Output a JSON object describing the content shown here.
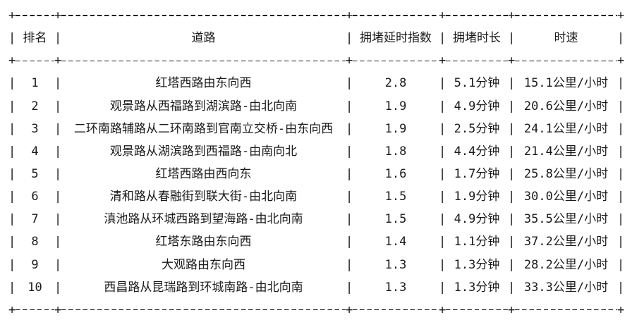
{
  "chart_data": {
    "type": "table",
    "title": "",
    "columns": [
      "排名",
      "道路",
      "拥堵延时指数",
      "拥堵时长",
      "时速"
    ],
    "column_keys": [
      "rank",
      "road",
      "delay-index",
      "duration",
      "speed"
    ],
    "rows": [
      [
        "1",
        "红塔西路由东向西",
        "2.8",
        "5.1分钟",
        "15.1公里/小时"
      ],
      [
        "2",
        "观景路从西福路到湖滨路-由北向南",
        "1.9",
        "4.9分钟",
        "20.6公里/小时"
      ],
      [
        "3",
        "二环南路辅路从二环南路到官南立交桥-由东向西",
        "1.9",
        "2.5分钟",
        "24.1公里/小时"
      ],
      [
        "4",
        "观景路从湖滨路到西福路-由南向北",
        "1.8",
        "4.4分钟",
        "21.4公里/小时"
      ],
      [
        "5",
        "红塔西路由西向东",
        "1.6",
        "1.7分钟",
        "25.8公里/小时"
      ],
      [
        "6",
        "清和路从春融街到联大街-由北向南",
        "1.5",
        "1.9分钟",
        "30.0公里/小时"
      ],
      [
        "7",
        "滇池路从环城西路到望海路-由北向南",
        "1.5",
        "4.9分钟",
        "35.5公里/小时"
      ],
      [
        "8",
        "红塔东路由东向西",
        "1.4",
        "1.1分钟",
        "37.2公里/小时"
      ],
      [
        "9",
        "大观路由东向西",
        "1.3",
        "1.3分钟",
        "28.2公里/小时"
      ],
      [
        "10",
        "西昌路从昆瑞路到环城南路-由北向南",
        "1.3",
        "1.3分钟",
        "33.3公里/小时"
      ]
    ],
    "border": {
      "corner": "+",
      "horizontal": "-",
      "vertical": "|"
    },
    "colors": {
      "text": "#1a1a1a",
      "background": "#ffffff"
    }
  }
}
